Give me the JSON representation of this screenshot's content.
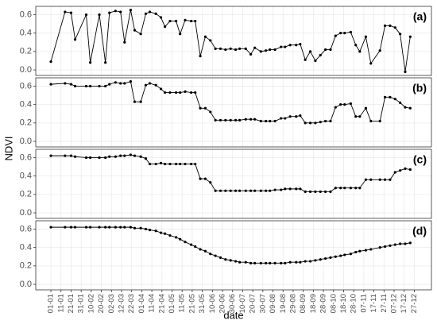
{
  "ylabel": "NDVI",
  "xlabel": "date",
  "chart_data": [
    {
      "type": "line",
      "annotation": "(a)",
      "color": "#000000",
      "grid": true,
      "xlim": [
        -15,
        377
      ],
      "ylim": [
        -0.06,
        0.69
      ],
      "yticks": [
        {
          "value": 0,
          "label": "0.0"
        },
        0.2,
        0.4,
        0.6
      ],
      "x": [
        0,
        14,
        20,
        24,
        35,
        39,
        48,
        54,
        58,
        64,
        69,
        73,
        79,
        83,
        89,
        94,
        98,
        104,
        109,
        113,
        118,
        124,
        128,
        133,
        139,
        143,
        148,
        153,
        158,
        163,
        168,
        173,
        178,
        183,
        187,
        193,
        198,
        202,
        208,
        213,
        217,
        222,
        228,
        232,
        237,
        243,
        247,
        252,
        257,
        262,
        267,
        272,
        277,
        282,
        287,
        291,
        297,
        302,
        306,
        312,
        317,
        326,
        331,
        336,
        341,
        346,
        351,
        356
      ],
      "values": [
        0.09,
        0.63,
        0.62,
        0.33,
        0.6,
        0.08,
        0.6,
        0.08,
        0.62,
        0.64,
        0.63,
        0.3,
        0.65,
        0.43,
        0.39,
        0.61,
        0.63,
        0.61,
        0.57,
        0.47,
        0.53,
        0.53,
        0.39,
        0.54,
        0.53,
        0.53,
        0.15,
        0.36,
        0.32,
        0.23,
        0.23,
        0.22,
        0.23,
        0.22,
        0.23,
        0.23,
        0.17,
        0.24,
        0.2,
        0.21,
        0.22,
        0.22,
        0.25,
        0.25,
        0.27,
        0.27,
        0.28,
        0.11,
        0.2,
        0.1,
        0.16,
        0.22,
        0.22,
        0.37,
        0.4,
        0.4,
        0.41,
        0.27,
        0.2,
        0.36,
        0.07,
        0.21,
        0.48,
        0.48,
        0.46,
        0.39,
        -0.02,
        0.36
      ]
    },
    {
      "type": "line",
      "annotation": "(b)",
      "color": "#000000",
      "grid": true,
      "xlim": [
        -15,
        377
      ],
      "ylim": [
        -0.06,
        0.69
      ],
      "yticks": [
        {
          "value": 0,
          "label": "0.0"
        },
        0.2,
        0.4,
        0.6
      ],
      "x": [
        0,
        14,
        20,
        24,
        35,
        39,
        48,
        54,
        58,
        64,
        69,
        73,
        79,
        83,
        89,
        94,
        98,
        104,
        109,
        113,
        118,
        124,
        128,
        133,
        139,
        143,
        148,
        153,
        158,
        163,
        168,
        173,
        178,
        183,
        187,
        193,
        198,
        202,
        208,
        213,
        217,
        222,
        228,
        232,
        237,
        243,
        247,
        252,
        257,
        262,
        267,
        272,
        277,
        282,
        287,
        291,
        297,
        302,
        306,
        312,
        317,
        326,
        331,
        336,
        341,
        346,
        351,
        356
      ],
      "values": [
        0.62,
        0.63,
        0.62,
        0.6,
        0.6,
        0.6,
        0.6,
        0.6,
        0.62,
        0.64,
        0.63,
        0.63,
        0.65,
        0.43,
        0.43,
        0.61,
        0.63,
        0.61,
        0.57,
        0.53,
        0.53,
        0.53,
        0.53,
        0.54,
        0.53,
        0.53,
        0.36,
        0.36,
        0.32,
        0.23,
        0.23,
        0.23,
        0.23,
        0.23,
        0.23,
        0.24,
        0.24,
        0.24,
        0.22,
        0.22,
        0.22,
        0.22,
        0.25,
        0.25,
        0.27,
        0.27,
        0.28,
        0.2,
        0.2,
        0.2,
        0.21,
        0.22,
        0.22,
        0.37,
        0.4,
        0.4,
        0.41,
        0.27,
        0.27,
        0.36,
        0.22,
        0.22,
        0.48,
        0.48,
        0.46,
        0.42,
        0.37,
        0.36
      ]
    },
    {
      "type": "line",
      "annotation": "(c)",
      "color": "#000000",
      "grid": true,
      "xlim": [
        -15,
        377
      ],
      "ylim": [
        -0.06,
        0.69
      ],
      "yticks": [
        {
          "value": 0,
          "label": "0.0"
        },
        0.2,
        0.4,
        0.6
      ],
      "x": [
        0,
        14,
        20,
        24,
        35,
        39,
        48,
        54,
        58,
        64,
        69,
        73,
        79,
        83,
        89,
        94,
        98,
        104,
        109,
        113,
        118,
        124,
        128,
        133,
        139,
        143,
        148,
        153,
        158,
        163,
        168,
        173,
        178,
        183,
        187,
        193,
        198,
        202,
        208,
        213,
        217,
        222,
        228,
        232,
        237,
        243,
        247,
        252,
        257,
        262,
        267,
        272,
        277,
        282,
        287,
        291,
        297,
        302,
        306,
        312,
        317,
        326,
        331,
        336,
        341,
        346,
        351,
        356
      ],
      "values": [
        0.62,
        0.62,
        0.62,
        0.61,
        0.6,
        0.6,
        0.6,
        0.6,
        0.61,
        0.61,
        0.62,
        0.62,
        0.63,
        0.62,
        0.61,
        0.59,
        0.53,
        0.53,
        0.54,
        0.53,
        0.53,
        0.53,
        0.53,
        0.53,
        0.53,
        0.53,
        0.37,
        0.37,
        0.33,
        0.24,
        0.24,
        0.24,
        0.24,
        0.24,
        0.24,
        0.24,
        0.24,
        0.24,
        0.24,
        0.24,
        0.24,
        0.25,
        0.25,
        0.26,
        0.26,
        0.26,
        0.26,
        0.23,
        0.23,
        0.23,
        0.23,
        0.23,
        0.23,
        0.27,
        0.27,
        0.27,
        0.27,
        0.27,
        0.27,
        0.36,
        0.36,
        0.36,
        0.36,
        0.36,
        0.44,
        0.46,
        0.48,
        0.47
      ]
    },
    {
      "type": "line",
      "annotation": "(d)",
      "color": "#000000",
      "grid": true,
      "xlim": [
        -15,
        377
      ],
      "ylim": [
        -0.06,
        0.69
      ],
      "yticks": [
        {
          "value": 0,
          "label": "0.0"
        },
        0.2,
        0.4,
        0.6
      ],
      "xticks": [
        {
          "value": 0,
          "label": "01-01"
        },
        {
          "value": 10,
          "label": "11-01"
        },
        {
          "value": 20,
          "label": "21-01"
        },
        {
          "value": 30,
          "label": "31-01"
        },
        {
          "value": 40,
          "label": "10-02"
        },
        {
          "value": 50,
          "label": "20-02"
        },
        {
          "value": 60,
          "label": "02-03"
        },
        {
          "value": 70,
          "label": "12-03"
        },
        {
          "value": 80,
          "label": "22-03"
        },
        {
          "value": 90,
          "label": "01-04"
        },
        {
          "value": 100,
          "label": "11-04"
        },
        {
          "value": 110,
          "label": "21-04"
        },
        {
          "value": 120,
          "label": "01-05"
        },
        {
          "value": 130,
          "label": "11-05"
        },
        {
          "value": 140,
          "label": "21-05"
        },
        {
          "value": 150,
          "label": "31-05"
        },
        {
          "value": 160,
          "label": "10-06"
        },
        {
          "value": 170,
          "label": "20-06"
        },
        {
          "value": 180,
          "label": "30-06"
        },
        {
          "value": 190,
          "label": "10-07"
        },
        {
          "value": 200,
          "label": "20-07"
        },
        {
          "value": 210,
          "label": "30-07"
        },
        {
          "value": 220,
          "label": "09-08"
        },
        {
          "value": 230,
          "label": "19-08"
        },
        {
          "value": 240,
          "label": "29-08"
        },
        {
          "value": 250,
          "label": "08-09"
        },
        {
          "value": 260,
          "label": "18-09"
        },
        {
          "value": 270,
          "label": "28-09"
        },
        {
          "value": 280,
          "label": "08-10"
        },
        {
          "value": 290,
          "label": "18-10"
        },
        {
          "value": 300,
          "label": "28-10"
        },
        {
          "value": 310,
          "label": "07-11"
        },
        {
          "value": 320,
          "label": "17-11"
        },
        {
          "value": 330,
          "label": "27-11"
        },
        {
          "value": 340,
          "label": "07-12"
        },
        {
          "value": 350,
          "label": "17-12"
        },
        {
          "value": 360,
          "label": "27-12"
        }
      ],
      "x": [
        0,
        14,
        20,
        24,
        35,
        39,
        48,
        54,
        58,
        64,
        69,
        73,
        79,
        83,
        89,
        94,
        98,
        104,
        109,
        113,
        118,
        124,
        128,
        133,
        139,
        143,
        148,
        153,
        158,
        163,
        168,
        173,
        178,
        183,
        187,
        193,
        198,
        202,
        208,
        213,
        217,
        222,
        228,
        232,
        237,
        243,
        247,
        252,
        257,
        262,
        267,
        272,
        277,
        282,
        287,
        291,
        297,
        302,
        306,
        312,
        317,
        326,
        331,
        336,
        341,
        346,
        351,
        356
      ],
      "values": [
        0.62,
        0.62,
        0.62,
        0.62,
        0.62,
        0.62,
        0.62,
        0.62,
        0.62,
        0.62,
        0.62,
        0.62,
        0.62,
        0.61,
        0.61,
        0.6,
        0.59,
        0.58,
        0.56,
        0.55,
        0.53,
        0.51,
        0.49,
        0.46,
        0.43,
        0.41,
        0.38,
        0.36,
        0.33,
        0.31,
        0.29,
        0.27,
        0.26,
        0.25,
        0.24,
        0.24,
        0.23,
        0.23,
        0.23,
        0.23,
        0.23,
        0.23,
        0.23,
        0.23,
        0.24,
        0.24,
        0.24,
        0.25,
        0.25,
        0.26,
        0.27,
        0.28,
        0.29,
        0.3,
        0.31,
        0.32,
        0.33,
        0.35,
        0.36,
        0.37,
        0.38,
        0.4,
        0.41,
        0.42,
        0.43,
        0.44,
        0.44,
        0.45
      ]
    }
  ]
}
